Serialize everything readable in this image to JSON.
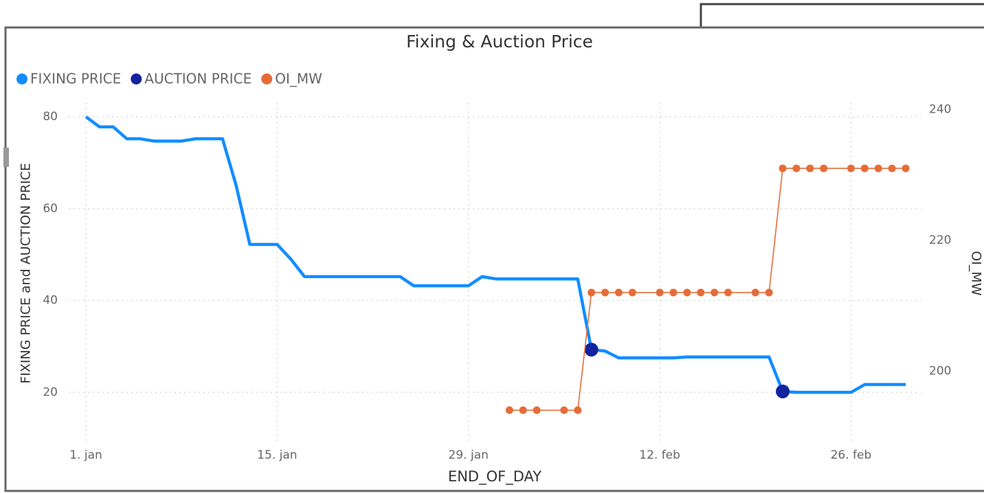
{
  "chart_data": {
    "type": "line",
    "title": "Fixing & Auction Price",
    "xlabel": "END_OF_DAY",
    "ylabel": "FIXING PRICE and AUCTION PRICE",
    "y2label": "OI_MW",
    "xlim": [
      "01-01",
      "03-02"
    ],
    "xticks": [
      {
        "value": "01-01",
        "label": "1. jan"
      },
      {
        "value": "01-15",
        "label": "15. jan"
      },
      {
        "value": "01-29",
        "label": "29. jan"
      },
      {
        "value": "02-12",
        "label": "12. feb"
      },
      {
        "value": "02-26",
        "label": "26. feb"
      }
    ],
    "ylim": [
      9,
      83
    ],
    "yticks": [
      20,
      40,
      60,
      80
    ],
    "y2lim": [
      189,
      241
    ],
    "y2ticks": [
      200,
      220,
      240
    ],
    "grid": true,
    "legend": "top-left",
    "series": [
      {
        "name": "FIXING PRICE",
        "color": "#118dff",
        "style": "line",
        "x": [
          "01-01",
          "01-02",
          "01-03",
          "01-04",
          "01-05",
          "01-06",
          "01-07",
          "01-08",
          "01-09",
          "01-10",
          "01-11",
          "01-12",
          "01-13",
          "01-14",
          "01-15",
          "01-16",
          "01-17",
          "01-18",
          "01-19",
          "01-20",
          "01-21",
          "01-22",
          "01-23",
          "01-24",
          "01-25",
          "01-26",
          "01-27",
          "01-28",
          "01-29",
          "01-30",
          "01-31",
          "02-01",
          "02-02",
          "02-03",
          "02-04",
          "02-05",
          "02-06",
          "02-07",
          "02-08",
          "02-09",
          "02-10",
          "02-11",
          "02-12",
          "02-13",
          "02-14",
          "02-15",
          "02-16",
          "02-17",
          "02-18",
          "02-19",
          "02-20",
          "02-21",
          "02-22",
          "02-23",
          "02-24",
          "02-25",
          "02-26",
          "02-27",
          "02-28",
          "03-01",
          "03-02"
        ],
        "values": [
          80,
          77.8,
          77.8,
          75.2,
          75.2,
          74.7,
          74.7,
          74.7,
          75.2,
          75.2,
          75.2,
          65,
          52.2,
          52.2,
          52.2,
          49,
          45.2,
          45.2,
          45.2,
          45.2,
          45.2,
          45.2,
          45.2,
          45.2,
          43.2,
          43.2,
          43.2,
          43.2,
          43.2,
          45.2,
          44.7,
          44.7,
          44.7,
          44.7,
          44.7,
          44.7,
          44.7,
          29.3,
          29,
          27.5,
          27.5,
          27.5,
          27.5,
          27.5,
          27.7,
          27.7,
          27.7,
          27.7,
          27.7,
          27.7,
          27.7,
          20.2,
          20,
          20,
          20,
          20,
          20,
          21.7,
          21.7,
          21.7,
          21.7
        ]
      },
      {
        "name": "AUCTION PRICE",
        "color": "#12239e",
        "style": "dots",
        "x": [
          "02-07",
          "02-21"
        ],
        "values": [
          29.3,
          20.2
        ]
      },
      {
        "name": "OI_MW",
        "color": "#e66c37",
        "style": "linedots",
        "axis": "y2",
        "x": [
          "02-01",
          "02-02",
          "02-03",
          "02-05",
          "02-06",
          "02-07",
          "02-08",
          "02-09",
          "02-10",
          "02-12",
          "02-13",
          "02-14",
          "02-15",
          "02-16",
          "02-17",
          "02-19",
          "02-20",
          "02-21",
          "02-22",
          "02-23",
          "02-24",
          "02-26",
          "02-27",
          "02-28",
          "03-01",
          "03-02"
        ],
        "values": [
          194,
          194,
          194,
          194,
          194,
          212,
          212,
          212,
          212,
          212,
          212,
          212,
          212,
          212,
          212,
          212,
          212,
          231,
          231,
          231,
          231,
          231,
          231,
          231,
          231,
          231
        ]
      }
    ]
  }
}
